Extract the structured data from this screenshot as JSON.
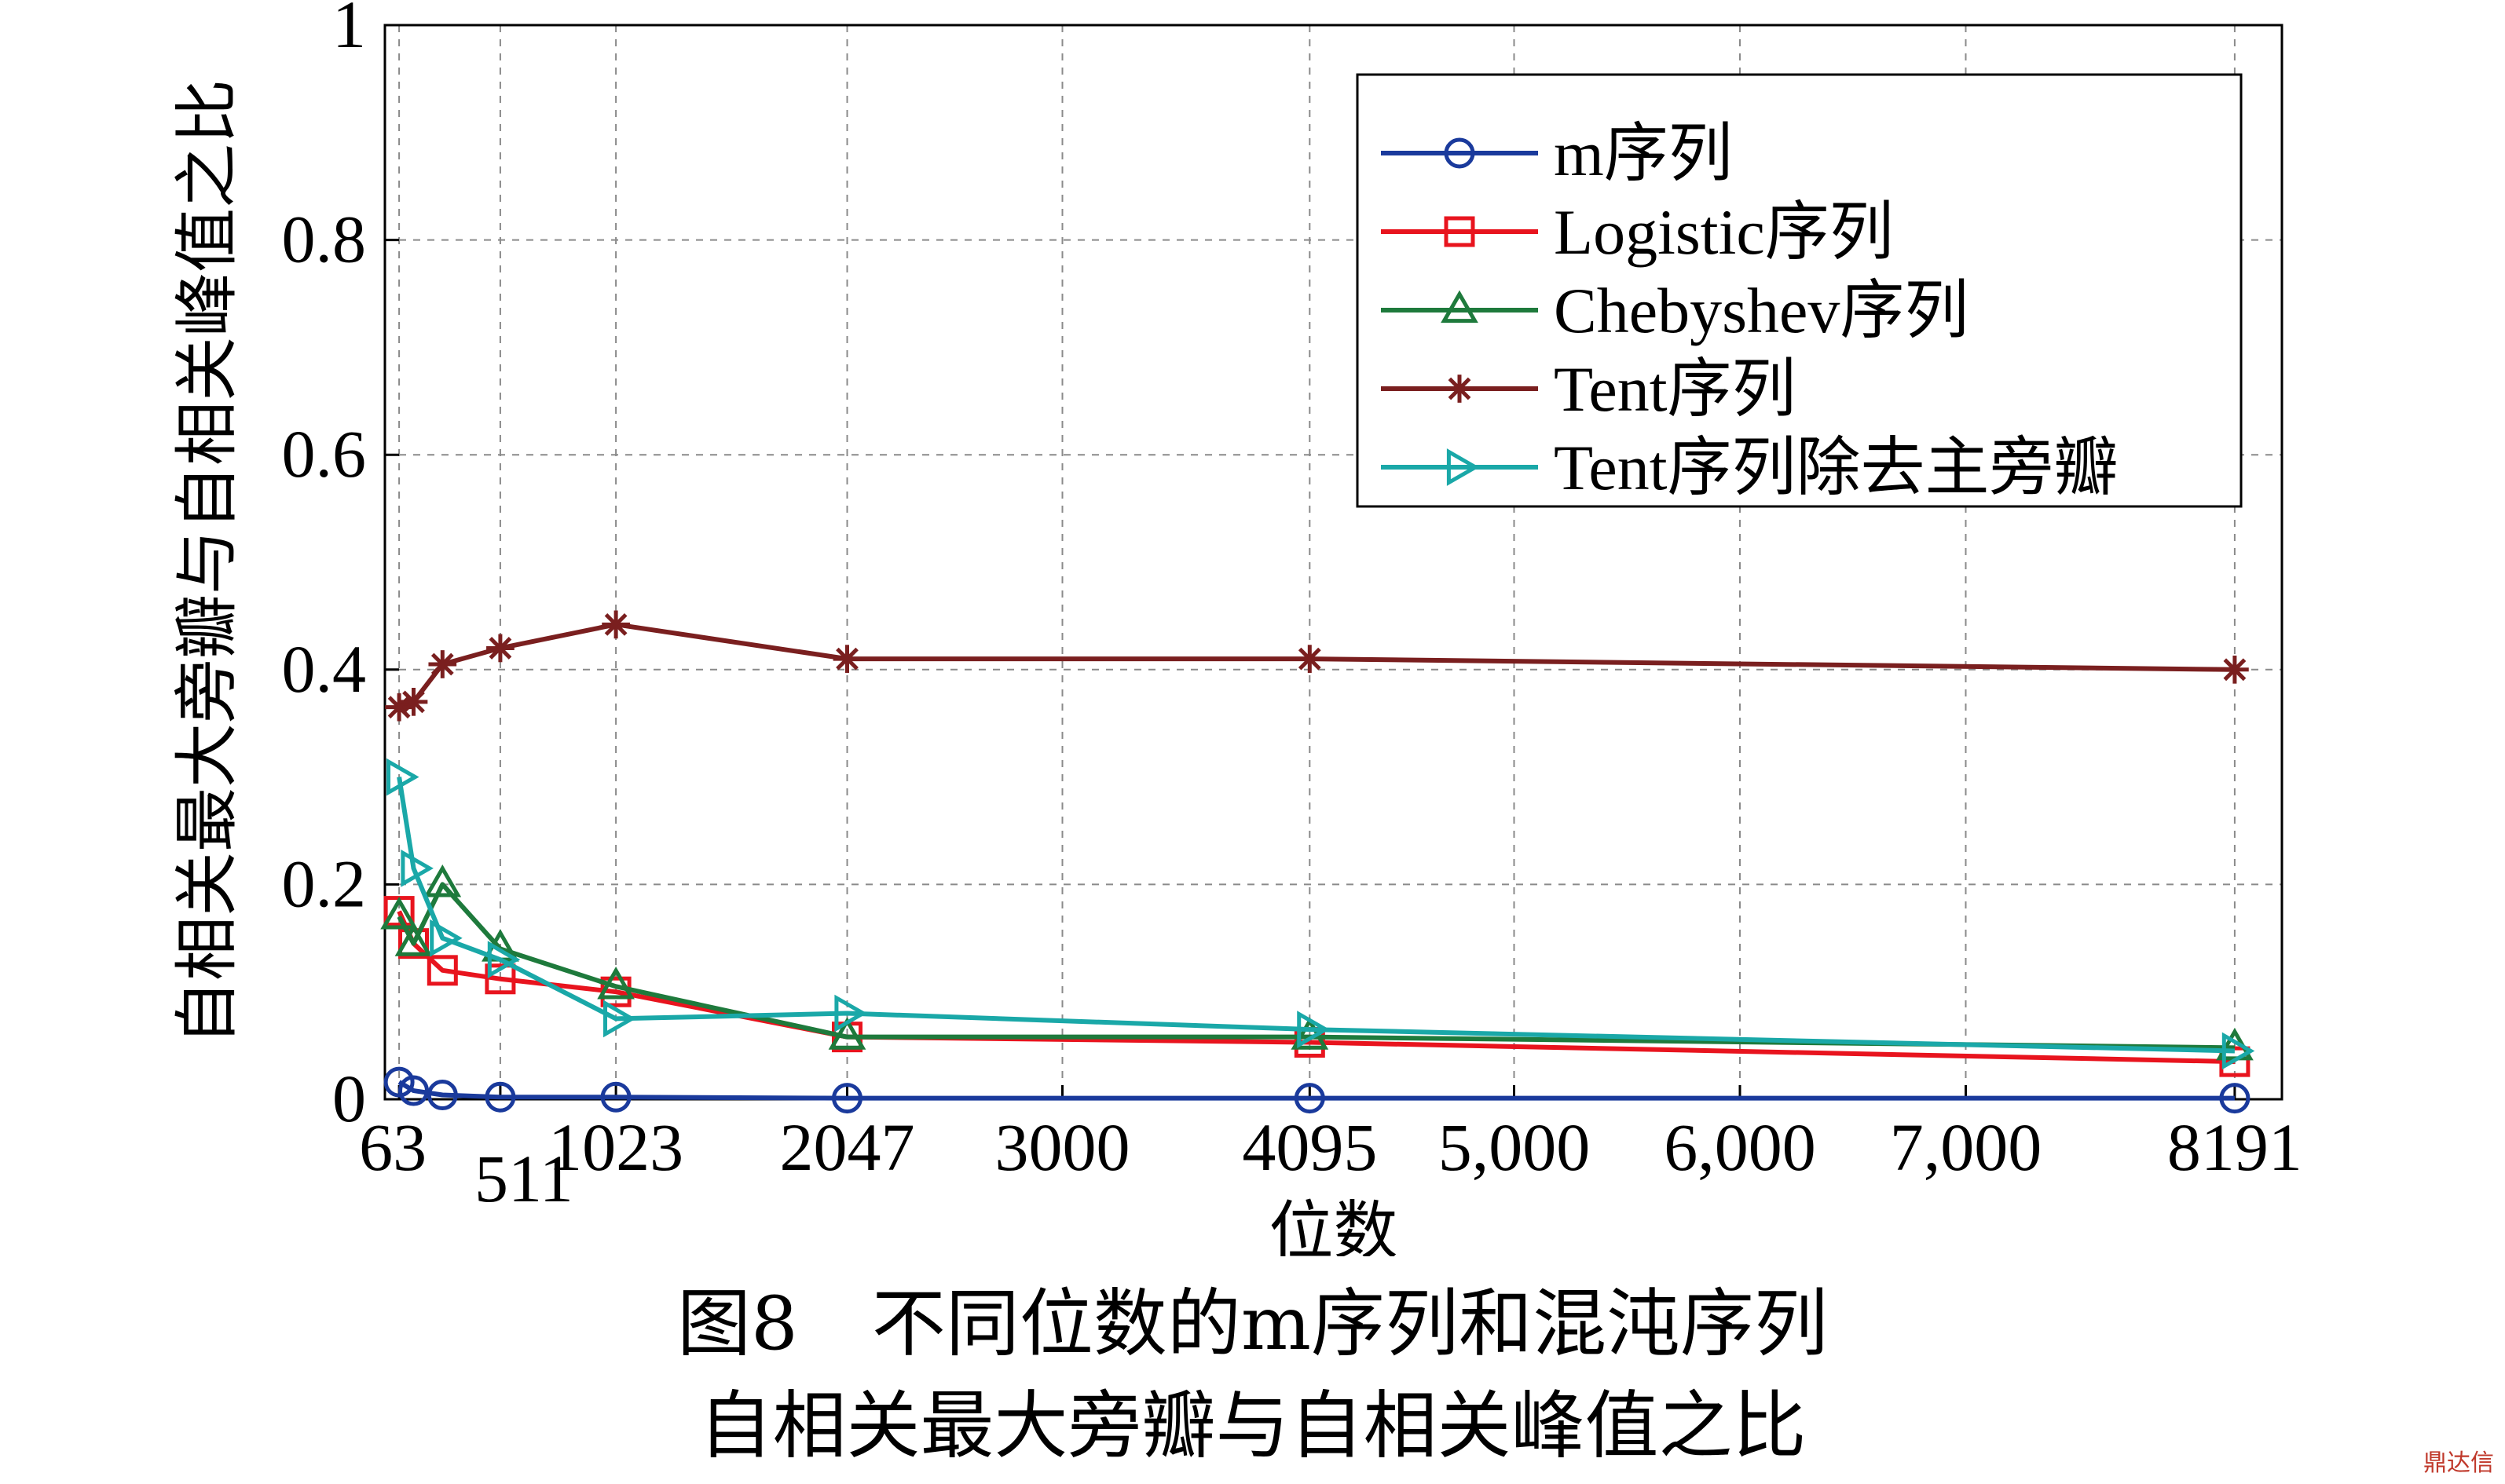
{
  "chart_data": {
    "type": "line",
    "xlabel": "位数",
    "ylabel": "自相关最大旁瓣与自相关峰值之比",
    "xlim": [
      0,
      8400
    ],
    "ylim": [
      0,
      1
    ],
    "grid": true,
    "legend_position": "top-right",
    "x_ticks": [
      {
        "value": 63,
        "label": "63"
      },
      {
        "value": 511,
        "label": "511"
      },
      {
        "value": 1023,
        "label": "1023"
      },
      {
        "value": 2047,
        "label": "2047"
      },
      {
        "value": 3000,
        "label": "3000"
      },
      {
        "value": 4095,
        "label": "4095"
      },
      {
        "value": 5000,
        "label": "5,000"
      },
      {
        "value": 6000,
        "label": "6,000"
      },
      {
        "value": 7000,
        "label": "7,000"
      },
      {
        "value": 8191,
        "label": "8191"
      }
    ],
    "y_ticks": [
      {
        "value": 0,
        "label": "0"
      },
      {
        "value": 0.2,
        "label": "0.2"
      },
      {
        "value": 0.4,
        "label": "0.4"
      },
      {
        "value": 0.6,
        "label": "0.6"
      },
      {
        "value": 0.8,
        "label": "0.8"
      },
      {
        "value": 1,
        "label": "1"
      }
    ],
    "x": [
      63,
      127,
      255,
      511,
      1023,
      2047,
      4095,
      8191
    ],
    "series": [
      {
        "name": "m序列",
        "color": "#1a3a9c",
        "marker": "circle",
        "values": [
          0.016,
          0.008,
          0.004,
          0.002,
          0.002,
          0.001,
          0.001,
          0.001
        ]
      },
      {
        "name": "Logistic序列",
        "color": "#e8141e",
        "marker": "square",
        "values": [
          0.175,
          0.145,
          0.12,
          0.112,
          0.1,
          0.058,
          0.053,
          0.035
        ]
      },
      {
        "name": "Chebyshev序列",
        "color": "#1e7a3c",
        "marker": "triangle-up",
        "values": [
          0.17,
          0.145,
          0.2,
          0.14,
          0.105,
          0.058,
          0.058,
          0.048
        ]
      },
      {
        "name": "Tent序列",
        "color": "#7a1f1f",
        "marker": "asterisk",
        "values": [
          0.365,
          0.37,
          0.405,
          0.42,
          0.442,
          0.41,
          0.41,
          0.4
        ]
      },
      {
        "name": "Tent序列除去主旁瓣",
        "color": "#1aa8a8",
        "marker": "triangle-right",
        "values": [
          0.3,
          0.215,
          0.15,
          0.13,
          0.075,
          0.08,
          0.065,
          0.045
        ]
      }
    ]
  },
  "caption": {
    "line1": "图8　不同位数的m序列和混沌序列",
    "line2": "自相关最大旁瓣与自相关峰值之比"
  },
  "watermark": "鼎达信"
}
